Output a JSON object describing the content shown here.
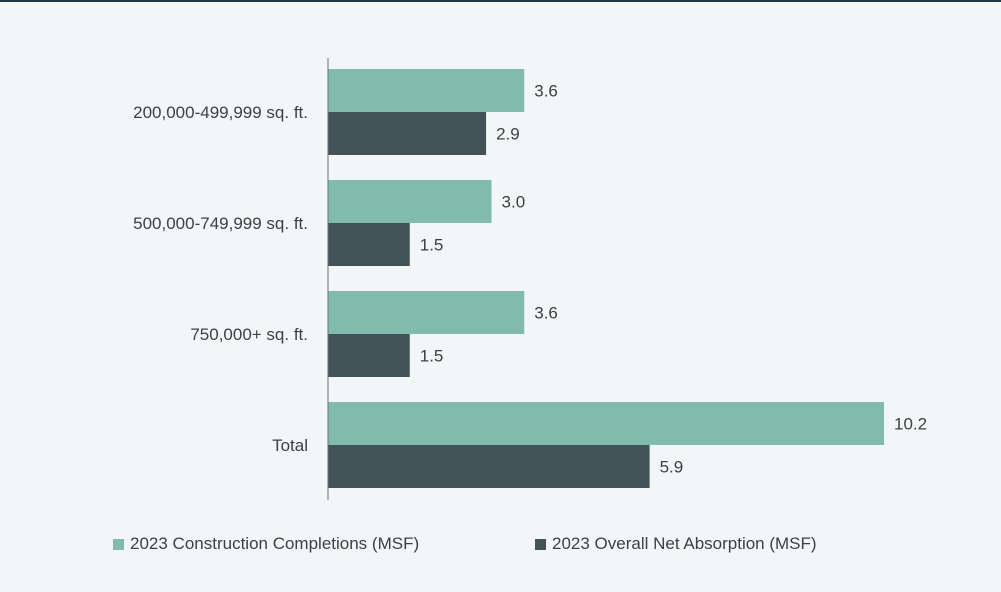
{
  "chart_data": {
    "type": "bar",
    "orientation": "horizontal",
    "categories": [
      "200,000-499,999 sq. ft.",
      "500,000-749,999 sq. ft.",
      "750,000+ sq. ft.",
      "Total"
    ],
    "series": [
      {
        "name": "2023 Construction Completions (MSF)",
        "color": "#80bbab",
        "values": [
          3.6,
          3.0,
          3.6,
          10.2
        ],
        "labels": [
          "3.6",
          "3.0",
          "3.6",
          "10.2"
        ]
      },
      {
        "name": "2023 Overall Net Absorption (MSF)",
        "color": "#435257",
        "values": [
          2.9,
          1.5,
          1.5,
          5.9
        ],
        "labels": [
          "2.9",
          "1.5",
          "1.5",
          "5.9"
        ]
      }
    ],
    "title": "",
    "xlabel": "",
    "ylabel": "",
    "xlim": [
      0,
      10.2
    ],
    "grid": false,
    "legend_position": "bottom"
  }
}
